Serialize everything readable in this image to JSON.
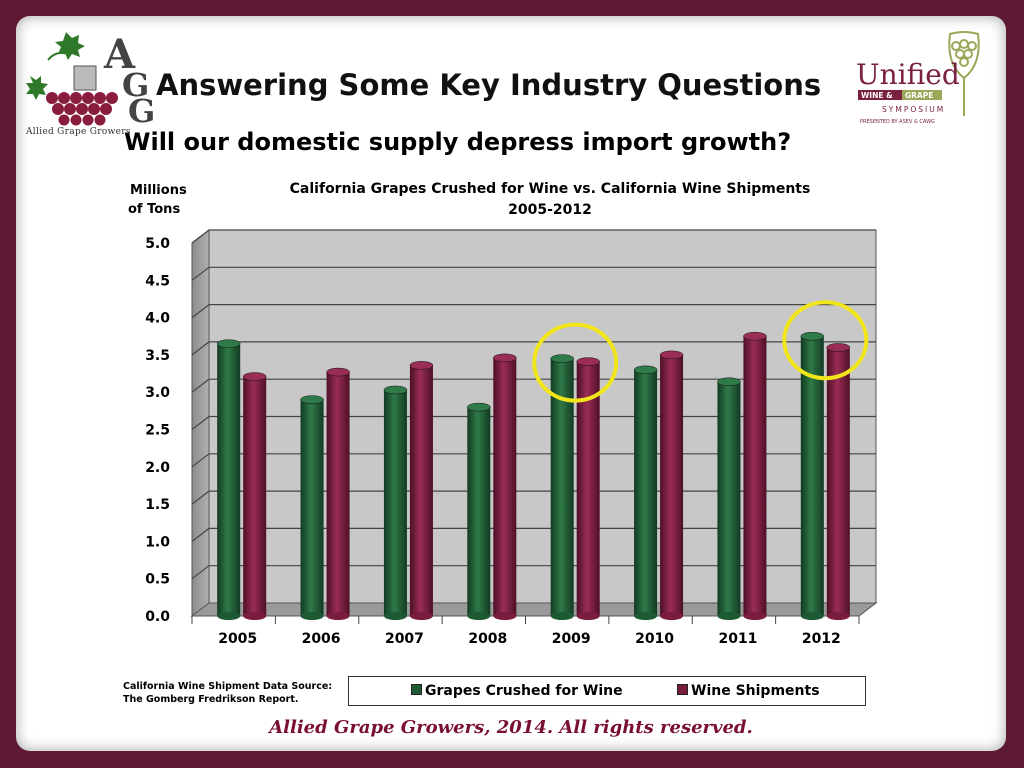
{
  "slide": {
    "title": "Answering Some Key Industry Questions",
    "subtitle": "Will our domestic supply depress import growth?",
    "footer": "Allied Grape Growers, 2014.  All rights reserved.",
    "source_note_line1": "California Wine Shipment  Data Source:",
    "source_note_line2": "The Gomberg Fredrikson Report."
  },
  "logos": {
    "agg_letters": [
      "A",
      "G",
      "G"
    ],
    "agg_caption": "Allied Grape Growers",
    "unified_word": "Unified",
    "unified_band_left": "WINE &",
    "unified_band_right": "GRAPE",
    "unified_symposium": "SYMPOSIUM",
    "unified_presented": "PRESENTED BY ASEV & CAWG"
  },
  "colors": {
    "background": "#5e1a35",
    "series_green": "#1d5a34",
    "series_wine": "#7a1c3e",
    "highlight_circle": "#f2e61a",
    "footer_text": "#7a1030"
  },
  "chart_data": {
    "type": "bar",
    "title_line1": "California Grapes Crushed for Wine vs. California Wine Shipments",
    "title_line2": "2005-2012",
    "ylabel_line1": "Millions",
    "ylabel_line2": "of Tons",
    "categories": [
      "2005",
      "2006",
      "2007",
      "2008",
      "2009",
      "2010",
      "2011",
      "2012"
    ],
    "series": [
      {
        "name": "Grapes Crushed for Wine",
        "color": "#1d5a34",
        "values": [
          3.65,
          2.9,
          3.03,
          2.8,
          3.45,
          3.3,
          3.14,
          3.75
        ]
      },
      {
        "name": "Wine Shipments",
        "color": "#7a1c3e",
        "values": [
          3.21,
          3.27,
          3.36,
          3.46,
          3.41,
          3.5,
          3.75,
          3.6
        ]
      }
    ],
    "ylim": [
      0,
      5
    ],
    "yticks": [
      "0.0",
      "0.5",
      "1.0",
      "1.5",
      "2.0",
      "2.5",
      "3.0",
      "3.5",
      "4.0",
      "4.5",
      "5.0"
    ],
    "grid": true,
    "legend": "bottom",
    "highlighted_categories": [
      "2009",
      "2012"
    ]
  }
}
